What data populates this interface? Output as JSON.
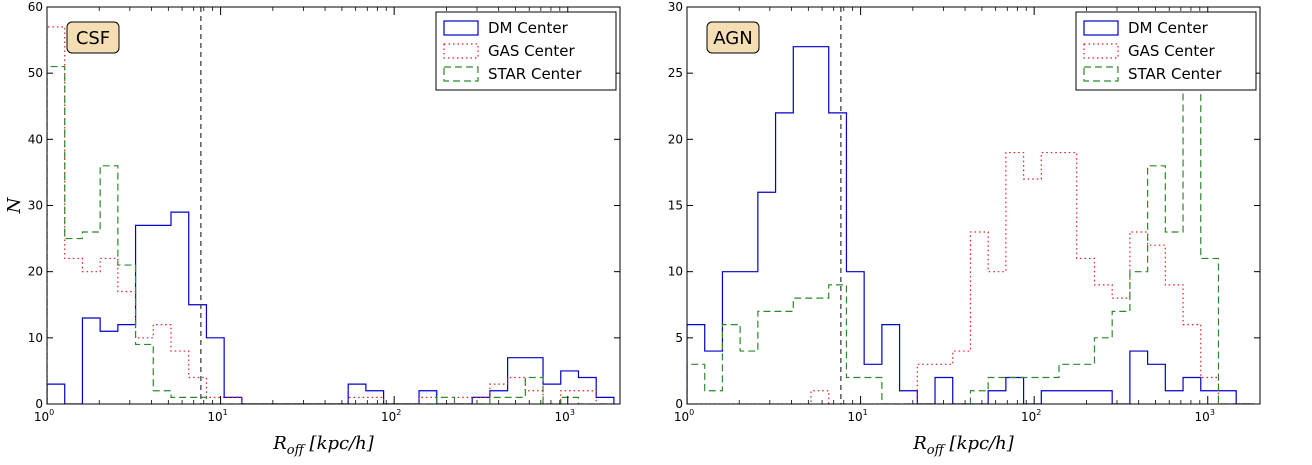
{
  "colors": {
    "DM Center": "#0000cc",
    "GAS Center": "#e41a1c",
    "STAR Center": "#2c8a2c",
    "badge": "#f5deb3",
    "reference_line": "#333333"
  },
  "chart_data": [
    {
      "type": "histogram",
      "panel_label": "CSF",
      "xlabel": "R_off [kpc/h]",
      "xlabel_main": "R",
      "xlabel_sub": "off",
      "xlabel_unit": "[kpc/h]",
      "ylabel": "N",
      "x_scale": "log",
      "xlim": [
        1,
        2000
      ],
      "ylim": [
        0,
        60
      ],
      "y_ticks": [
        0,
        10,
        20,
        30,
        40,
        50,
        60
      ],
      "x_ticks": [
        {
          "value": 1,
          "base": "10",
          "exp": "0"
        },
        {
          "value": 10,
          "base": "10",
          "exp": "1"
        },
        {
          "value": 100,
          "base": "10",
          "exp": "2"
        },
        {
          "value": 1000,
          "base": "10",
          "exp": "3"
        }
      ],
      "reference_line_x": 7.7,
      "legend_position": "top-right",
      "bin_edges": [
        1.0,
        1.265,
        1.6,
        2.024,
        2.56,
        3.238,
        4.096,
        5.181,
        6.554,
        8.29,
        10.486,
        13.264,
        16.777,
        21.222,
        26.844,
        33.954,
        42.95,
        54.328,
        68.72,
        86.924,
        109.951,
        139.078,
        175.922,
        222.526,
        281.475,
        356.04,
        450.36,
        569.665,
        720.576,
        911.466,
        1152.922,
        1458.351,
        1844.7
      ],
      "series": [
        {
          "name": "DM Center",
          "style": "solid",
          "counts": [
            3,
            0,
            13,
            11,
            12,
            27,
            27,
            29,
            15,
            10,
            1,
            0,
            0,
            0,
            0,
            0,
            0,
            3,
            2,
            0,
            0,
            2,
            0,
            0,
            1,
            2,
            7,
            7,
            3,
            5,
            4,
            1
          ]
        },
        {
          "name": "GAS Center",
          "style": "dotted",
          "counts": [
            57,
            22,
            20,
            22,
            17,
            10,
            12,
            8,
            4,
            1,
            1,
            0,
            0,
            0,
            0,
            0,
            0,
            1,
            1,
            0,
            0,
            1,
            0,
            1,
            1,
            3,
            4,
            2,
            0,
            2,
            2,
            0
          ]
        },
        {
          "name": "STAR Center",
          "style": "dashed",
          "counts": [
            51,
            25,
            26,
            36,
            21,
            9,
            2,
            1,
            1,
            0,
            0,
            0,
            0,
            0,
            0,
            0,
            0,
            0,
            0,
            0,
            0,
            0,
            1,
            0,
            0,
            1,
            1,
            4,
            0,
            1,
            0,
            0
          ]
        }
      ]
    },
    {
      "type": "histogram",
      "panel_label": "AGN",
      "xlabel": "R_off [kpc/h]",
      "xlabel_main": "R",
      "xlabel_sub": "off",
      "xlabel_unit": "[kpc/h]",
      "ylabel": "",
      "x_scale": "log",
      "xlim": [
        1,
        2000
      ],
      "ylim": [
        0,
        30
      ],
      "y_ticks": [
        0,
        5,
        10,
        15,
        20,
        25,
        30
      ],
      "x_ticks": [
        {
          "value": 1,
          "base": "10",
          "exp": "0"
        },
        {
          "value": 10,
          "base": "10",
          "exp": "1"
        },
        {
          "value": 100,
          "base": "10",
          "exp": "2"
        },
        {
          "value": 1000,
          "base": "10",
          "exp": "3"
        }
      ],
      "reference_line_x": 7.7,
      "legend_position": "top-right",
      "bin_edges": [
        1.0,
        1.265,
        1.6,
        2.024,
        2.56,
        3.238,
        4.096,
        5.181,
        6.554,
        8.29,
        10.486,
        13.264,
        16.777,
        21.222,
        26.844,
        33.954,
        42.95,
        54.328,
        68.72,
        86.924,
        109.951,
        139.078,
        175.922,
        222.526,
        281.475,
        356.04,
        450.36,
        569.665,
        720.576,
        911.466,
        1152.922,
        1458.351,
        1844.7
      ],
      "series": [
        {
          "name": "DM Center",
          "style": "solid",
          "counts": [
            6,
            4,
            10,
            10,
            16,
            22,
            27,
            27,
            22,
            10,
            3,
            6,
            1,
            0,
            2,
            0,
            0,
            1,
            2,
            0,
            1,
            1,
            1,
            1,
            0,
            4,
            3,
            1,
            2,
            1,
            1,
            0
          ]
        },
        {
          "name": "GAS Center",
          "style": "dotted",
          "counts": [
            0,
            0,
            0,
            0,
            0,
            0,
            0,
            1,
            0,
            0,
            0,
            0,
            0,
            3,
            3,
            4,
            13,
            10,
            19,
            17,
            19,
            19,
            11,
            9,
            8,
            13,
            12,
            9,
            6,
            2,
            0,
            0
          ]
        },
        {
          "name": "STAR Center",
          "style": "dashed",
          "counts": [
            3,
            1,
            6,
            4,
            7,
            7,
            8,
            8,
            9,
            2,
            2,
            0,
            0,
            0,
            0,
            0,
            1,
            2,
            2,
            2,
            2,
            3,
            3,
            5,
            7,
            10,
            18,
            13,
            25,
            11,
            0,
            0
          ]
        }
      ]
    }
  ]
}
